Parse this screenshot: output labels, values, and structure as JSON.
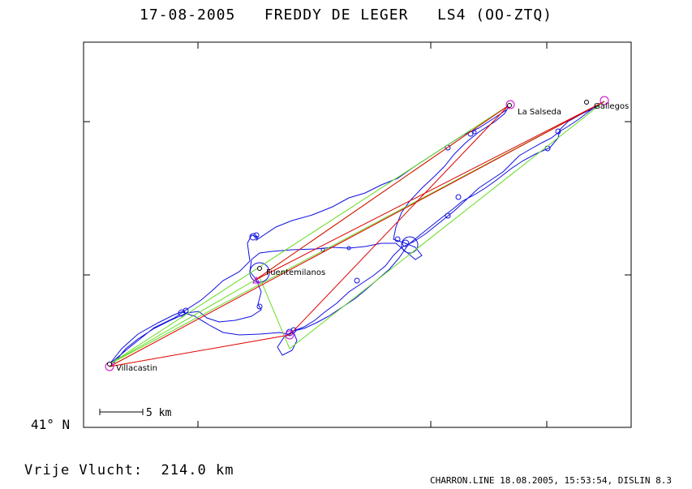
{
  "header": {
    "date": "17-08-2005",
    "pilot": "FREDDY DE LEGER",
    "glider": "LS4 (OO-ZTQ)"
  },
  "map": {
    "latitude_label": "41° N",
    "scale_label": "5 km",
    "places": [
      {
        "id": "la-salseda",
        "name": "La Salseda"
      },
      {
        "id": "gallegos",
        "name": "Gallegos"
      },
      {
        "id": "fuentemilanos",
        "name": "Fuentemilanos"
      },
      {
        "id": "villacastin",
        "name": "Villacastin"
      }
    ],
    "colors": {
      "track": "#1010e0",
      "declared_course": "#e00000",
      "flown_legs": "#66dd22",
      "turnpoint_marker": "#cc00cc",
      "frame": "#000000"
    }
  },
  "footer": {
    "free_flight_label": "Vrije Vlucht:",
    "distance": "214.0 km",
    "software_info": "CHARRON.LINE 18.08.2005, 15:53:54, DISLIN 8.3"
  }
}
